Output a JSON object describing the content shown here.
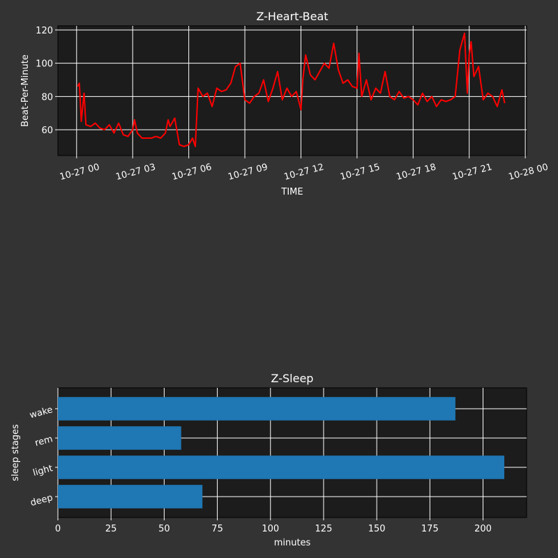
{
  "chart_data": [
    {
      "type": "line",
      "title": "Z-Heart-Beat",
      "xlabel": "TIME",
      "ylabel": "Beat-Per-Minute",
      "x_unit": "hours since 10-27 00:00",
      "xlim": [
        -1,
        24.07
      ],
      "ylim": [
        44.5,
        122.5
      ],
      "grid": true,
      "line_color": "#ff0000",
      "x_ticks": [
        0,
        3,
        6,
        9,
        12,
        15,
        18,
        21,
        24
      ],
      "x_tick_labels": [
        "10-27 00",
        "10-27 03",
        "10-27 06",
        "10-27 09",
        "10-27 12",
        "10-27 15",
        "10-27 18",
        "10-27 21",
        "10-28 00"
      ],
      "y_ticks": [
        60,
        80,
        100,
        120
      ],
      "y_tick_labels": [
        "60",
        "80",
        "100",
        "120"
      ],
      "x": [
        0.05,
        0.15,
        0.25,
        0.4,
        0.5,
        0.75,
        1.0,
        1.25,
        1.5,
        1.75,
        2.0,
        2.25,
        2.5,
        2.75,
        3.0,
        3.1,
        3.25,
        3.5,
        3.75,
        4.0,
        4.25,
        4.5,
        4.75,
        4.9,
        5.0,
        5.25,
        5.5,
        5.75,
        6.0,
        6.2,
        6.35,
        6.5,
        6.75,
        7.0,
        7.25,
        7.5,
        7.75,
        8.0,
        8.25,
        8.5,
        8.75,
        9.0,
        9.25,
        9.5,
        9.75,
        10.0,
        10.25,
        10.5,
        10.75,
        11.0,
        11.25,
        11.5,
        11.75,
        12.0,
        12.1,
        12.25,
        12.5,
        12.75,
        13.0,
        13.25,
        13.5,
        13.75,
        14.0,
        14.25,
        14.5,
        14.75,
        15.0,
        15.1,
        15.25,
        15.5,
        15.75,
        16.0,
        16.25,
        16.5,
        16.75,
        17.0,
        17.25,
        17.5,
        17.75,
        18.0,
        18.25,
        18.5,
        18.75,
        19.0,
        19.25,
        19.5,
        19.75,
        20.0,
        20.25,
        20.5,
        20.75,
        20.9,
        21.0,
        21.1,
        21.25,
        21.5,
        21.75,
        22.0,
        22.25,
        22.5,
        22.75,
        22.9
      ],
      "y": [
        86,
        88,
        65,
        82,
        63,
        62,
        64,
        61,
        60,
        63,
        58,
        64,
        57,
        56,
        60,
        66,
        58,
        55,
        55,
        55,
        56,
        55,
        58,
        66,
        62,
        67,
        51,
        50,
        51,
        55,
        50,
        85,
        80,
        82,
        74,
        85,
        83,
        84,
        88,
        98,
        100,
        78,
        76,
        80,
        82,
        90,
        77,
        85,
        95,
        78,
        85,
        80,
        83,
        72,
        90,
        105,
        93,
        90,
        95,
        100,
        97,
        112,
        96,
        88,
        90,
        86,
        85,
        106,
        80,
        90,
        78,
        85,
        82,
        95,
        80,
        78,
        83,
        79,
        80,
        78,
        75,
        82,
        77,
        80,
        74,
        78,
        77,
        78,
        80,
        108,
        118,
        82,
        105,
        113,
        92,
        98,
        78,
        82,
        80,
        74,
        84,
        76
      ]
    },
    {
      "type": "bar",
      "orientation": "horizontal",
      "title": "Z-Sleep",
      "xlabel": "minutes",
      "ylabel": "sleep stages",
      "categories": [
        "deep",
        "light",
        "rem",
        "wake"
      ],
      "values": [
        68,
        210,
        58,
        187
      ],
      "bar_color": "#1f77b4",
      "xlim": [
        0,
        220.5
      ],
      "grid": true,
      "x_ticks": [
        0,
        25,
        50,
        75,
        100,
        125,
        150,
        175,
        200
      ],
      "x_tick_labels": [
        "0",
        "25",
        "50",
        "75",
        "100",
        "125",
        "150",
        "175",
        "200"
      ]
    }
  ]
}
